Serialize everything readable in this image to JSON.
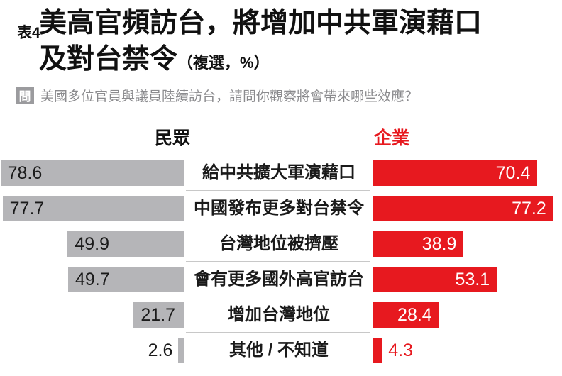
{
  "header": {
    "table_label": "表4",
    "title_line1": "美高官頻訪台，將增加中共軍演藉口",
    "title_line2": "及對台禁令",
    "title_note": "（複選，%）"
  },
  "question": {
    "badge": "問",
    "text": "美國多位官員與議員陸續訪台，請問你觀察將會帶來哪些效應？"
  },
  "colors": {
    "public_bar": "#b5b5b8",
    "enterprise_bar": "#e7191f",
    "enterprise_header": "#e7191f",
    "public_header": "#111111",
    "question_gray": "#8b8b8e",
    "separator": "#c8c8c8"
  },
  "chart_data": {
    "type": "bar",
    "orientation": "horizontal-diverging",
    "unit": "%",
    "title": "美高官頻訪台，將增加中共軍演藉口及對台禁令（複選，%）",
    "categories": [
      "給中共擴大軍演藉口",
      "中國發布更多對台禁令",
      "台灣地位被擠壓",
      "會有更多國外高官訪台",
      "增加台灣地位",
      "其他 / 不知道"
    ],
    "series": [
      {
        "name": "民眾",
        "side": "left",
        "color": "#b5b5b8",
        "values": [
          78.6,
          77.7,
          49.9,
          49.7,
          21.7,
          2.6
        ]
      },
      {
        "name": "企業",
        "side": "right",
        "color": "#e7191f",
        "values": [
          70.4,
          77.2,
          38.9,
          53.1,
          28.4,
          4.3
        ]
      }
    ],
    "xlim": [
      0,
      80
    ],
    "grid": false,
    "legend_position": "column-headers"
  }
}
